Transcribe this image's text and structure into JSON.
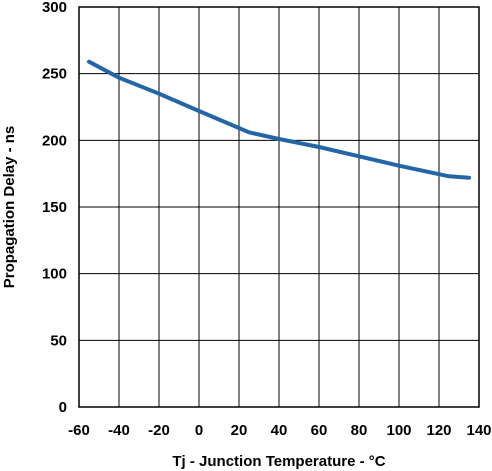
{
  "chart_data": {
    "type": "line",
    "title": "",
    "xlabel": "Tj - Junction Temperature - °C",
    "ylabel": "Propagation Delay - ns",
    "xlim": [
      -60,
      140
    ],
    "ylim": [
      0,
      300
    ],
    "grid": true,
    "x_ticks": [
      "-60",
      "-40",
      "-20",
      "0",
      "20",
      "40",
      "60",
      "80",
      "100",
      "120",
      "140"
    ],
    "y_ticks": [
      "0",
      "50",
      "100",
      "150",
      "200",
      "250",
      "300"
    ],
    "colors": {
      "line": "#2266a8",
      "grid": "#000000"
    },
    "series": [
      {
        "x": [
          -55,
          -40,
          -20,
          0,
          25,
          40,
          60,
          80,
          100,
          125,
          135
        ],
        "y": [
          259,
          247,
          235,
          222,
          206,
          201,
          195,
          188,
          181,
          173,
          172
        ]
      }
    ]
  }
}
